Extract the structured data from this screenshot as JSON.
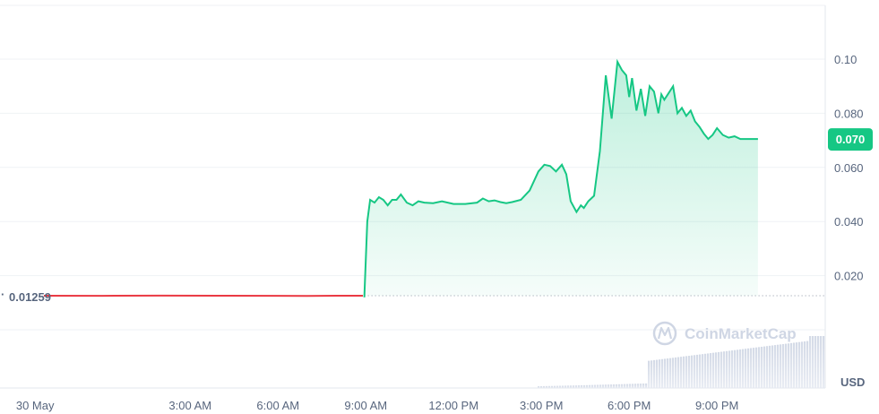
{
  "chart_data": {
    "type": "line",
    "ylim": [
      0,
      0.12
    ],
    "y_ticks": [
      "0.020",
      "0.040",
      "0.060",
      "0.080",
      "0.10"
    ],
    "y_tick_values": [
      0.02,
      0.04,
      0.06,
      0.08,
      0.1
    ],
    "x_ticks": [
      "30 May",
      "3:00 AM",
      "6:00 AM",
      "9:00 AM",
      "12:00 PM",
      "3:00 PM",
      "6:00 PM",
      "9:00 PM"
    ],
    "x_tick_hours": [
      -2.3,
      3,
      6,
      9,
      12,
      15,
      18,
      21
    ],
    "xlim_hours": [
      -3.5,
      24.7
    ],
    "baseline_label": "0.01259",
    "baseline_value": 0.01259,
    "current_label": "0.070",
    "current_value": 0.0705,
    "currency_label": "USD",
    "watermark": "CoinMarketCap",
    "colors": {
      "up": "#16c784",
      "down": "#ea3943",
      "fill": "#16c784",
      "label_bg": "#16c784"
    },
    "series": [
      {
        "x": [
          -2.0,
          0,
          2,
          4,
          6,
          7,
          8,
          8.9
        ],
        "y": [
          0.01259,
          0.01255,
          0.0126,
          0.01258,
          0.01256,
          0.0125,
          0.01258,
          0.01259
        ]
      },
      {
        "x": [
          8.95,
          9.05,
          9.15,
          9.3,
          9.45,
          9.6,
          9.75,
          9.9,
          10.05,
          10.2,
          10.4,
          10.6,
          10.8,
          11.0,
          11.3,
          11.6,
          12.0,
          12.4,
          12.8,
          13.0,
          13.2,
          13.4,
          13.6,
          13.8,
          14.0,
          14.3,
          14.6,
          14.9,
          15.1,
          15.3,
          15.5,
          15.7,
          15.85,
          16.0,
          16.2,
          16.35,
          16.45,
          16.6,
          16.8,
          17.0,
          17.2,
          17.4,
          17.6,
          17.75,
          17.9,
          18.0,
          18.1,
          18.25,
          18.4,
          18.55,
          18.7,
          18.85,
          19.0,
          19.1,
          19.2,
          19.35,
          19.5,
          19.65,
          19.8,
          19.95,
          20.1,
          20.25,
          20.4,
          20.55,
          20.7,
          20.85,
          21.0,
          21.2,
          21.4,
          21.6,
          21.8,
          22.0,
          22.2,
          22.4
        ],
        "y": [
          0.012,
          0.04,
          0.048,
          0.047,
          0.049,
          0.048,
          0.046,
          0.048,
          0.048,
          0.05,
          0.047,
          0.046,
          0.0475,
          0.047,
          0.0468,
          0.0475,
          0.0465,
          0.0465,
          0.047,
          0.0485,
          0.0475,
          0.0478,
          0.0472,
          0.0468,
          0.0472,
          0.048,
          0.0515,
          0.0585,
          0.061,
          0.0605,
          0.0585,
          0.061,
          0.0575,
          0.0475,
          0.0435,
          0.046,
          0.045,
          0.0475,
          0.0495,
          0.066,
          0.094,
          0.078,
          0.099,
          0.096,
          0.094,
          0.086,
          0.093,
          0.081,
          0.089,
          0.079,
          0.09,
          0.088,
          0.08,
          0.087,
          0.085,
          0.0875,
          0.09,
          0.08,
          0.082,
          0.079,
          0.081,
          0.077,
          0.075,
          0.0725,
          0.0705,
          0.072,
          0.0745,
          0.072,
          0.071,
          0.0715,
          0.0705,
          0.0705,
          0.0705,
          0.0705
        ]
      }
    ]
  }
}
